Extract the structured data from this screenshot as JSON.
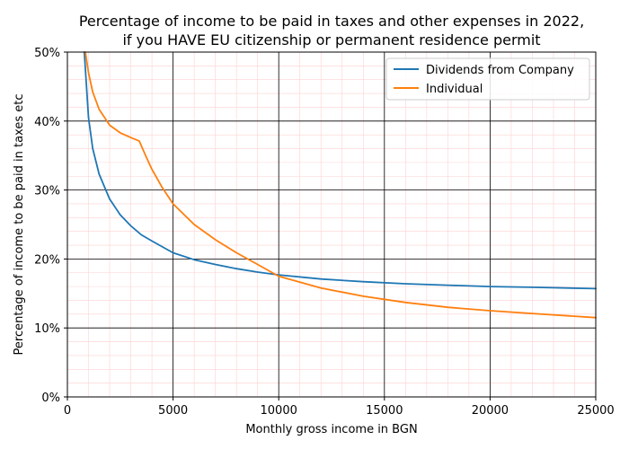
{
  "chart_data": {
    "type": "line",
    "title": "Percentage of income to be paid in taxes and other expenses in 2022,",
    "subtitle": "if you HAVE EU citizenship or permanent residence permit",
    "xlabel": "Monthly gross income in BGN",
    "ylabel": "Percentage of income to be paid in taxes etc",
    "xlim": [
      0,
      25000
    ],
    "ylim": [
      0,
      50
    ],
    "x_ticks": [
      "0",
      "5000",
      "10000",
      "15000",
      "20000",
      "25000"
    ],
    "y_ticks": [
      "0%",
      "10%",
      "20%",
      "30%",
      "40%",
      "50%"
    ],
    "grid": true,
    "legend_position": "top-right",
    "series": [
      {
        "name": "Dividends from Company",
        "color": "#1f77b4",
        "x": [
          800,
          1000,
          1200,
          1500,
          2000,
          2500,
          3000,
          3500,
          4000,
          5000,
          6000,
          7000,
          8000,
          9000,
          10000,
          12000,
          14000,
          16000,
          18000,
          20000,
          22000,
          25000
        ],
        "y": [
          50,
          40.5,
          36,
          32.3,
          28.7,
          26.4,
          24.8,
          23.5,
          22.6,
          20.9,
          19.9,
          19.2,
          18.6,
          18.1,
          17.7,
          17.1,
          16.7,
          16.4,
          16.2,
          16.0,
          15.9,
          15.7
        ]
      },
      {
        "name": "Individual",
        "color": "#ff7f0e",
        "x": [
          850,
          1000,
          1200,
          1500,
          2000,
          2500,
          3000,
          3400,
          3700,
          4000,
          4500,
          5000,
          6000,
          7000,
          8000,
          9000,
          10000,
          12000,
          14000,
          16000,
          18000,
          20000,
          22000,
          25000
        ],
        "y": [
          50,
          47,
          44.2,
          41.7,
          39.4,
          38.3,
          37.6,
          37.1,
          35,
          33,
          30.3,
          28,
          25,
          22.8,
          20.9,
          19.2,
          17.5,
          15.8,
          14.6,
          13.7,
          13.0,
          12.5,
          12.1,
          11.5
        ]
      }
    ]
  }
}
